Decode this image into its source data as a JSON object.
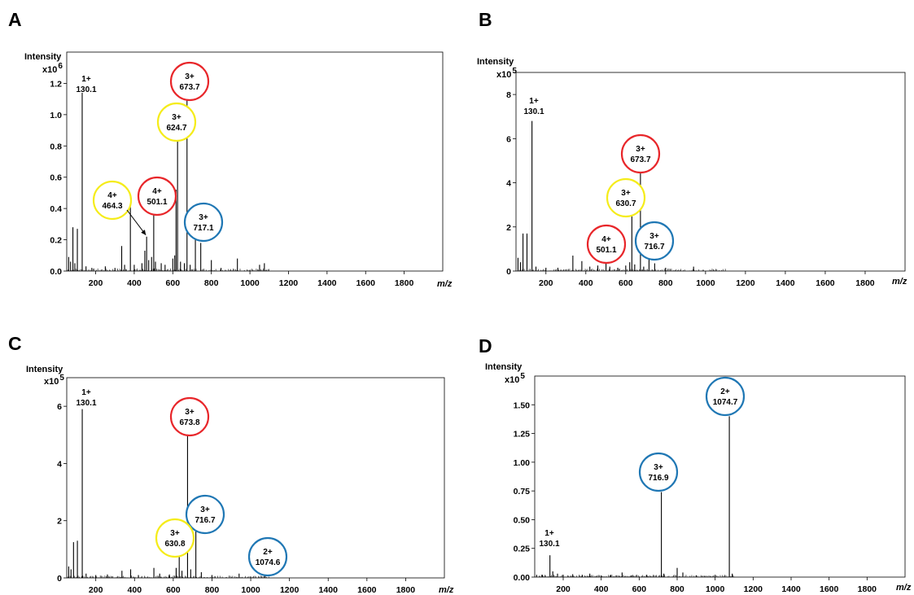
{
  "chart_data": [
    {
      "panel": "A",
      "type": "line",
      "ylabel": "Intensity",
      "y_multiplier": "x10",
      "y_exponent": "6",
      "xlabel": "m/z",
      "xlim": [
        50,
        2000
      ],
      "x_ticks": [
        200,
        400,
        600,
        800,
        1000,
        1200,
        1400,
        1600,
        1800
      ],
      "ylim": [
        0,
        1.4
      ],
      "y_ticks": [
        0.0,
        0.2,
        0.4,
        0.6,
        0.8,
        1.0,
        1.2
      ],
      "y_tick_labels": [
        "0.0",
        "0.2",
        "0.4",
        "0.6",
        "0.8",
        "1.0",
        "1.2"
      ],
      "peaks": [
        {
          "x": 60,
          "y": 0.09
        },
        {
          "x": 70,
          "y": 0.06
        },
        {
          "x": 82,
          "y": 0.28
        },
        {
          "x": 92,
          "y": 0.05
        },
        {
          "x": 105,
          "y": 0.27
        },
        {
          "x": 130.1,
          "y": 1.14
        },
        {
          "x": 150,
          "y": 0.03
        },
        {
          "x": 180,
          "y": 0.02
        },
        {
          "x": 250,
          "y": 0.03
        },
        {
          "x": 300,
          "y": 0.02
        },
        {
          "x": 335,
          "y": 0.16
        },
        {
          "x": 350,
          "y": 0.04
        },
        {
          "x": 380,
          "y": 0.42
        },
        {
          "x": 400,
          "y": 0.04
        },
        {
          "x": 440,
          "y": 0.05
        },
        {
          "x": 455,
          "y": 0.13
        },
        {
          "x": 464.3,
          "y": 0.22
        },
        {
          "x": 475,
          "y": 0.07
        },
        {
          "x": 490,
          "y": 0.09
        },
        {
          "x": 501.1,
          "y": 0.4
        },
        {
          "x": 510,
          "y": 0.06
        },
        {
          "x": 540,
          "y": 0.05
        },
        {
          "x": 560,
          "y": 0.04
        },
        {
          "x": 600,
          "y": 0.08
        },
        {
          "x": 610,
          "y": 0.1
        },
        {
          "x": 617,
          "y": 0.52
        },
        {
          "x": 624.7,
          "y": 0.88
        },
        {
          "x": 640,
          "y": 0.06
        },
        {
          "x": 660,
          "y": 0.05
        },
        {
          "x": 673.7,
          "y": 1.15
        },
        {
          "x": 690,
          "y": 0.04
        },
        {
          "x": 717.1,
          "y": 0.2
        },
        {
          "x": 745,
          "y": 0.18
        },
        {
          "x": 800,
          "y": 0.07
        },
        {
          "x": 850,
          "y": 0.02
        },
        {
          "x": 935,
          "y": 0.08
        },
        {
          "x": 1050,
          "y": 0.04
        },
        {
          "x": 1075,
          "y": 0.05
        }
      ],
      "annotations": [
        {
          "charge": "1+",
          "mz": "130.1",
          "x": 130.1,
          "y": 1.14,
          "circle": ""
        },
        {
          "charge": "3+",
          "mz": "673.7",
          "x": 673.7,
          "y": 1.15,
          "circle": "red"
        },
        {
          "charge": "3+",
          "mz": "624.7",
          "x": 624.7,
          "y": 0.88,
          "circle": "yellow"
        },
        {
          "charge": "4+",
          "mz": "464.3",
          "x": 464.3,
          "y": 0.22,
          "circle": "yellow",
          "arrow": true
        },
        {
          "charge": "4+",
          "mz": "501.1",
          "x": 501.1,
          "y": 0.4,
          "circle": "red"
        },
        {
          "charge": "3+",
          "mz": "717.1",
          "x": 717.1,
          "y": 0.2,
          "circle": "blue"
        }
      ]
    },
    {
      "panel": "B",
      "type": "line",
      "ylabel": "Intensity",
      "y_multiplier": "x10",
      "y_exponent": "5",
      "xlabel": "m/z",
      "xlim": [
        50,
        2000
      ],
      "x_ticks": [
        200,
        400,
        600,
        800,
        1000,
        1200,
        1400,
        1600,
        1800
      ],
      "ylim": [
        0,
        9
      ],
      "y_ticks": [
        0,
        2,
        4,
        6,
        8
      ],
      "y_tick_labels": [
        "0",
        "2",
        "4",
        "6",
        "8"
      ],
      "peaks": [
        {
          "x": 60,
          "y": 0.6
        },
        {
          "x": 72,
          "y": 0.4
        },
        {
          "x": 85,
          "y": 1.7
        },
        {
          "x": 105,
          "y": 1.7
        },
        {
          "x": 130.1,
          "y": 6.8
        },
        {
          "x": 150,
          "y": 0.2
        },
        {
          "x": 200,
          "y": 0.15
        },
        {
          "x": 260,
          "y": 0.15
        },
        {
          "x": 335,
          "y": 0.7
        },
        {
          "x": 380,
          "y": 0.45
        },
        {
          "x": 420,
          "y": 0.2
        },
        {
          "x": 460,
          "y": 0.25
        },
        {
          "x": 501.1,
          "y": 0.5
        },
        {
          "x": 520,
          "y": 0.2
        },
        {
          "x": 560,
          "y": 0.15
        },
        {
          "x": 600,
          "y": 0.25
        },
        {
          "x": 620,
          "y": 0.4
        },
        {
          "x": 630.7,
          "y": 2.6
        },
        {
          "x": 645,
          "y": 0.3
        },
        {
          "x": 673.7,
          "y": 4.5
        },
        {
          "x": 690,
          "y": 0.2
        },
        {
          "x": 716.7,
          "y": 0.8
        },
        {
          "x": 745,
          "y": 0.35
        },
        {
          "x": 800,
          "y": 0.15
        },
        {
          "x": 940,
          "y": 0.2
        }
      ],
      "annotations": [
        {
          "charge": "1+",
          "mz": "130.1",
          "x": 130.1,
          "y": 6.8,
          "circle": ""
        },
        {
          "charge": "3+",
          "mz": "673.7",
          "x": 673.7,
          "y": 4.5,
          "circle": "red"
        },
        {
          "charge": "3+",
          "mz": "630.7",
          "x": 630.7,
          "y": 2.6,
          "circle": "yellow"
        },
        {
          "charge": "4+",
          "mz": "501.1",
          "x": 501.1,
          "y": 0.5,
          "circle": "red"
        },
        {
          "charge": "3+",
          "mz": "716.7",
          "x": 716.7,
          "y": 0.8,
          "circle": "blue"
        }
      ]
    },
    {
      "panel": "C",
      "type": "line",
      "ylabel": "Intensity",
      "y_multiplier": "x10",
      "y_exponent": "5",
      "xlabel": "m/z",
      "xlim": [
        50,
        2000
      ],
      "x_ticks": [
        200,
        400,
        600,
        800,
        1000,
        1200,
        1400,
        1600,
        1800
      ],
      "ylim": [
        0,
        7
      ],
      "y_ticks": [
        0,
        2,
        4,
        6
      ],
      "y_tick_labels": [
        "0",
        "2",
        "4",
        "6"
      ],
      "peaks": [
        {
          "x": 60,
          "y": 0.4
        },
        {
          "x": 72,
          "y": 0.3
        },
        {
          "x": 85,
          "y": 1.25
        },
        {
          "x": 105,
          "y": 1.3
        },
        {
          "x": 130.1,
          "y": 5.9
        },
        {
          "x": 150,
          "y": 0.15
        },
        {
          "x": 200,
          "y": 0.1
        },
        {
          "x": 260,
          "y": 0.12
        },
        {
          "x": 335,
          "y": 0.25
        },
        {
          "x": 380,
          "y": 0.3
        },
        {
          "x": 420,
          "y": 0.1
        },
        {
          "x": 500,
          "y": 0.35
        },
        {
          "x": 530,
          "y": 0.15
        },
        {
          "x": 580,
          "y": 0.12
        },
        {
          "x": 615,
          "y": 0.35
        },
        {
          "x": 630.8,
          "y": 1.0
        },
        {
          "x": 645,
          "y": 0.25
        },
        {
          "x": 673.8,
          "y": 5.1
        },
        {
          "x": 690,
          "y": 0.3
        },
        {
          "x": 716.7,
          "y": 1.65
        },
        {
          "x": 745,
          "y": 0.2
        },
        {
          "x": 800,
          "y": 0.1
        },
        {
          "x": 940,
          "y": 0.15
        },
        {
          "x": 1074.6,
          "y": 0.25
        }
      ],
      "annotations": [
        {
          "charge": "1+",
          "mz": "130.1",
          "x": 130.1,
          "y": 5.9,
          "circle": ""
        },
        {
          "charge": "3+",
          "mz": "673.8",
          "x": 673.8,
          "y": 5.1,
          "circle": "red"
        },
        {
          "charge": "3+",
          "mz": "716.7",
          "x": 716.7,
          "y": 1.65,
          "circle": "blue"
        },
        {
          "charge": "3+",
          "mz": "630.8",
          "x": 630.8,
          "y": 1.0,
          "circle": "yellow"
        },
        {
          "charge": "2+",
          "mz": "1074.6",
          "x": 1074.6,
          "y": 0.25,
          "circle": "blue"
        }
      ]
    },
    {
      "panel": "D",
      "type": "line",
      "ylabel": "Intensity",
      "y_multiplier": "x10",
      "y_exponent": "5",
      "xlabel": "m/z",
      "xlim": [
        50,
        2000
      ],
      "x_ticks": [
        200,
        400,
        600,
        800,
        1000,
        1200,
        1400,
        1600,
        1800
      ],
      "ylim": [
        0,
        1.75
      ],
      "y_ticks": [
        0,
        0.25,
        0.5,
        0.75,
        1.0,
        1.25,
        1.5
      ],
      "y_tick_labels": [
        "0.00",
        "0.25",
        "0.50",
        "0.75",
        "1.00",
        "1.25",
        "1.50"
      ],
      "peaks": [
        {
          "x": 60,
          "y": 0.02
        },
        {
          "x": 90,
          "y": 0.02
        },
        {
          "x": 130.1,
          "y": 0.19
        },
        {
          "x": 145,
          "y": 0.05
        },
        {
          "x": 170,
          "y": 0.03
        },
        {
          "x": 200,
          "y": 0.02
        },
        {
          "x": 250,
          "y": 0.025
        },
        {
          "x": 300,
          "y": 0.02
        },
        {
          "x": 340,
          "y": 0.03
        },
        {
          "x": 400,
          "y": 0.015
        },
        {
          "x": 450,
          "y": 0.02
        },
        {
          "x": 510,
          "y": 0.04
        },
        {
          "x": 560,
          "y": 0.015
        },
        {
          "x": 640,
          "y": 0.02
        },
        {
          "x": 716.9,
          "y": 0.74
        },
        {
          "x": 730,
          "y": 0.03
        },
        {
          "x": 800,
          "y": 0.08
        },
        {
          "x": 830,
          "y": 0.04
        },
        {
          "x": 900,
          "y": 0.015
        },
        {
          "x": 1000,
          "y": 0.02
        },
        {
          "x": 1074.7,
          "y": 1.4
        },
        {
          "x": 1090,
          "y": 0.03
        }
      ],
      "annotations": [
        {
          "charge": "1+",
          "mz": "130.1",
          "x": 130.1,
          "y": 0.19,
          "circle": ""
        },
        {
          "charge": "3+",
          "mz": "716.9",
          "x": 716.9,
          "y": 0.74,
          "circle": "blue"
        },
        {
          "charge": "2+",
          "mz": "1074.7",
          "x": 1074.7,
          "y": 1.4,
          "circle": "blue"
        }
      ]
    }
  ],
  "colors": {
    "red": "#e8262a",
    "yellow": "#f5ec1a",
    "blue": "#1f77b4",
    "axis": "#000000",
    "peak": "#000000"
  }
}
